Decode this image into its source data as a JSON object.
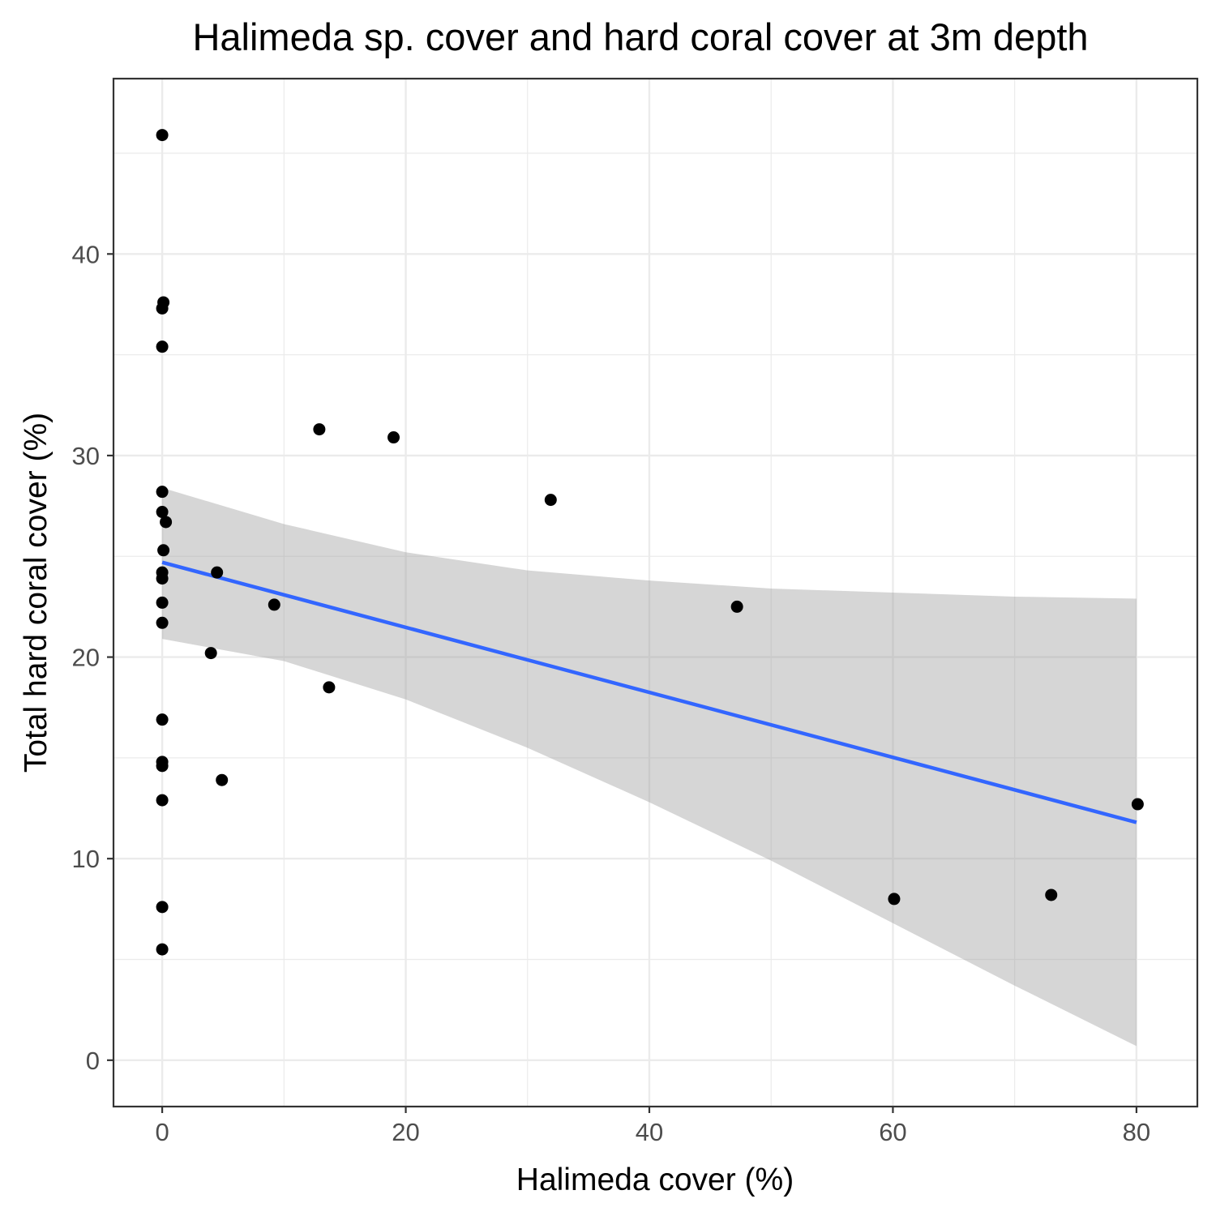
{
  "chart_data": {
    "type": "scatter",
    "title": "Halimeda sp. cover and hard coral cover at 3m depth",
    "xlabel": "Halimeda cover (%)",
    "ylabel": "Total hard coral cover (%)",
    "xlim": [
      -4,
      85
    ],
    "ylim": [
      -2.3,
      48.7
    ],
    "x_ticks": [
      0,
      20,
      40,
      60,
      80
    ],
    "y_ticks": [
      0,
      10,
      20,
      30,
      40
    ],
    "x_tick_labels": [
      "0",
      "20",
      "40",
      "60",
      "80"
    ],
    "y_tick_labels": [
      "0",
      "10",
      "20",
      "30",
      "40"
    ],
    "x_minor_ticks": [
      10,
      30,
      50,
      70
    ],
    "y_minor_ticks": [
      5,
      15,
      25,
      35,
      45
    ],
    "grid": true,
    "points": [
      {
        "x": 0,
        "y": 45.9
      },
      {
        "x": 0.1,
        "y": 37.6
      },
      {
        "x": 0,
        "y": 37.3
      },
      {
        "x": 0,
        "y": 35.4
      },
      {
        "x": 0,
        "y": 28.2
      },
      {
        "x": 0,
        "y": 27.2
      },
      {
        "x": 0.3,
        "y": 26.7
      },
      {
        "x": 0.1,
        "y": 25.3
      },
      {
        "x": 0,
        "y": 24.2
      },
      {
        "x": 0,
        "y": 23.9
      },
      {
        "x": 0,
        "y": 22.7
      },
      {
        "x": 0,
        "y": 21.7
      },
      {
        "x": 0,
        "y": 16.9
      },
      {
        "x": 0,
        "y": 14.8
      },
      {
        "x": 0,
        "y": 14.6
      },
      {
        "x": 0,
        "y": 12.9
      },
      {
        "x": 0,
        "y": 7.6
      },
      {
        "x": 0,
        "y": 5.5
      },
      {
        "x": 4.5,
        "y": 24.2
      },
      {
        "x": 4,
        "y": 20.2
      },
      {
        "x": 4.9,
        "y": 13.9
      },
      {
        "x": 9.2,
        "y": 22.6
      },
      {
        "x": 12.9,
        "y": 31.3
      },
      {
        "x": 13.7,
        "y": 18.5
      },
      {
        "x": 19,
        "y": 30.9
      },
      {
        "x": 31.9,
        "y": 27.8
      },
      {
        "x": 47.2,
        "y": 22.5
      },
      {
        "x": 60.1,
        "y": 8
      },
      {
        "x": 73,
        "y": 8.2
      },
      {
        "x": 80.1,
        "y": 12.7
      }
    ],
    "trend_line": {
      "x": [
        0,
        80
      ],
      "y": [
        24.7,
        11.8
      ]
    },
    "confidence_band": {
      "x": [
        0,
        10,
        20,
        30,
        40,
        50,
        60,
        70,
        80
      ],
      "upper": [
        28.4,
        26.6,
        25.2,
        24.3,
        23.8,
        23.4,
        23.2,
        23.0,
        22.9
      ],
      "lower": [
        20.9,
        19.8,
        17.9,
        15.5,
        12.8,
        9.9,
        6.8,
        3.7,
        0.7
      ]
    },
    "colors": {
      "point": "#000000",
      "trend_line": "#3366FF",
      "band": "#999999",
      "grid": "#EBEBEB",
      "border": "#333333",
      "tick_text": "#4D4D4D"
    }
  }
}
